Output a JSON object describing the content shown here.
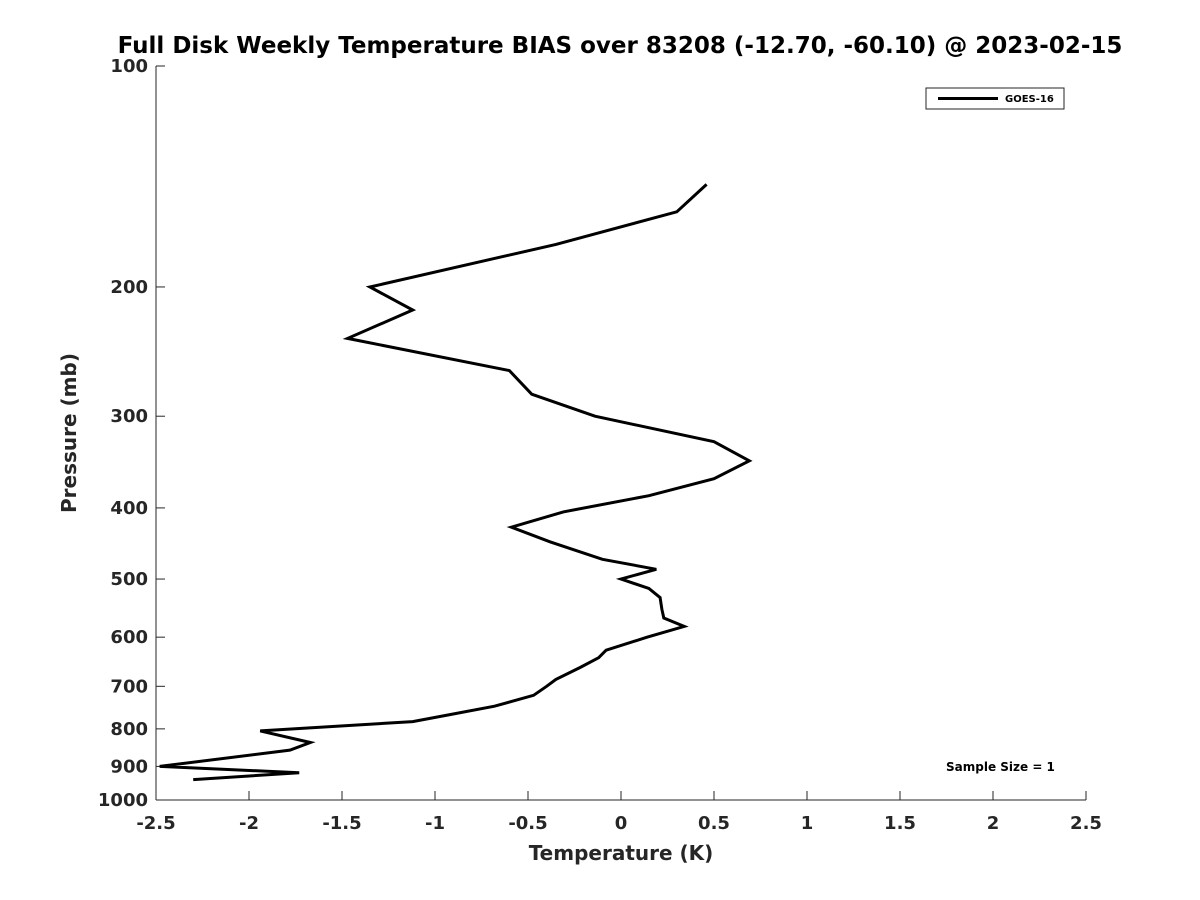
{
  "chart_data": {
    "type": "line",
    "title": "Full Disk Weekly Temperature BIAS over 83208 (-12.70, -60.10) @ 2023-02-15",
    "xlabel": "Temperature (K)",
    "ylabel": "Pressure (mb)",
    "xlim": [
      -2.5,
      2.5
    ],
    "ylim": [
      100,
      1000
    ],
    "y_scale": "log",
    "y_reversed": true,
    "x_ticks": [
      -2.5,
      -2,
      -1.5,
      -1,
      -0.5,
      0,
      0.5,
      1,
      1.5,
      2,
      2.5
    ],
    "x_tick_labels": [
      "-2.5",
      "-2",
      "-1.5",
      "-1",
      "-0.5",
      "0",
      "0.5",
      "1",
      "1.5",
      "2",
      "2.5"
    ],
    "y_ticks": [
      100,
      200,
      300,
      400,
      500,
      600,
      700,
      800,
      900,
      1000
    ],
    "y_tick_labels": [
      "100",
      "200",
      "300",
      "400",
      "500",
      "600",
      "700",
      "800",
      "900",
      "1000"
    ],
    "grid": false,
    "legend_position": "top-right",
    "series": [
      {
        "name": "GOES-16",
        "color": "#000000",
        "points": [
          {
            "x": 0.46,
            "p": 145
          },
          {
            "x": 0.3,
            "p": 158
          },
          {
            "x": -0.35,
            "p": 175
          },
          {
            "x": -1.35,
            "p": 200
          },
          {
            "x": -1.12,
            "p": 215
          },
          {
            "x": -1.47,
            "p": 235
          },
          {
            "x": -0.6,
            "p": 260
          },
          {
            "x": -0.48,
            "p": 280
          },
          {
            "x": -0.14,
            "p": 300
          },
          {
            "x": 0.5,
            "p": 325
          },
          {
            "x": 0.69,
            "p": 345
          },
          {
            "x": 0.5,
            "p": 365
          },
          {
            "x": 0.15,
            "p": 385
          },
          {
            "x": -0.31,
            "p": 405
          },
          {
            "x": -0.59,
            "p": 425
          },
          {
            "x": -0.38,
            "p": 445
          },
          {
            "x": -0.1,
            "p": 470
          },
          {
            "x": 0.19,
            "p": 485
          },
          {
            "x": 0.0,
            "p": 500
          },
          {
            "x": 0.15,
            "p": 515
          },
          {
            "x": 0.21,
            "p": 530
          },
          {
            "x": 0.22,
            "p": 550
          },
          {
            "x": 0.23,
            "p": 565
          },
          {
            "x": 0.34,
            "p": 580
          },
          {
            "x": 0.14,
            "p": 600
          },
          {
            "x": -0.08,
            "p": 625
          },
          {
            "x": -0.12,
            "p": 640
          },
          {
            "x": -0.22,
            "p": 660
          },
          {
            "x": -0.35,
            "p": 685
          },
          {
            "x": -0.4,
            "p": 700
          },
          {
            "x": -0.47,
            "p": 720
          },
          {
            "x": -0.68,
            "p": 745
          },
          {
            "x": -0.92,
            "p": 765
          },
          {
            "x": -1.12,
            "p": 782
          },
          {
            "x": -1.94,
            "p": 805
          },
          {
            "x": -1.67,
            "p": 835
          },
          {
            "x": -1.78,
            "p": 855
          },
          {
            "x": -2.48,
            "p": 900
          },
          {
            "x": -1.73,
            "p": 918
          },
          {
            "x": -2.3,
            "p": 938
          }
        ]
      }
    ],
    "annotations": [
      "Sample Size = 1"
    ]
  }
}
